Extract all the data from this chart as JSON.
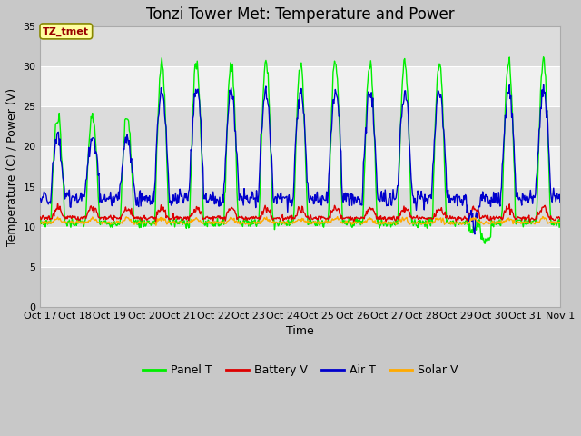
{
  "title": "Tonzi Tower Met: Temperature and Power",
  "xlabel": "Time",
  "ylabel": "Temperature (C) / Power (V)",
  "annotation": "TZ_tmet",
  "ylim": [
    0,
    35
  ],
  "series": {
    "panel_t": {
      "label": "Panel T",
      "color": "#00ee00"
    },
    "battery_v": {
      "label": "Battery V",
      "color": "#dd0000"
    },
    "air_t": {
      "label": "Air T",
      "color": "#0000cc"
    },
    "solar_v": {
      "label": "Solar V",
      "color": "#ffaa00"
    }
  },
  "fig_bg": "#c8c8c8",
  "plot_bg": "#ffffff",
  "band_color_dark": "#dcdcdc",
  "band_color_light": "#f0f0f0",
  "xtick_labels": [
    "Oct 17",
    "Oct 18",
    "Oct 19",
    "Oct 20",
    "Oct 21",
    "Oct 22",
    "Oct 23",
    "Oct 24",
    "Oct 25",
    "Oct 26",
    "Oct 27",
    "Oct 28",
    "Oct 29",
    "Oct 30",
    "Oct 31",
    "Nov 1"
  ],
  "yticks": [
    0,
    5,
    10,
    15,
    20,
    25,
    30,
    35
  ],
  "title_fontsize": 12,
  "axis_fontsize": 9,
  "tick_fontsize": 8,
  "legend_fontsize": 9
}
